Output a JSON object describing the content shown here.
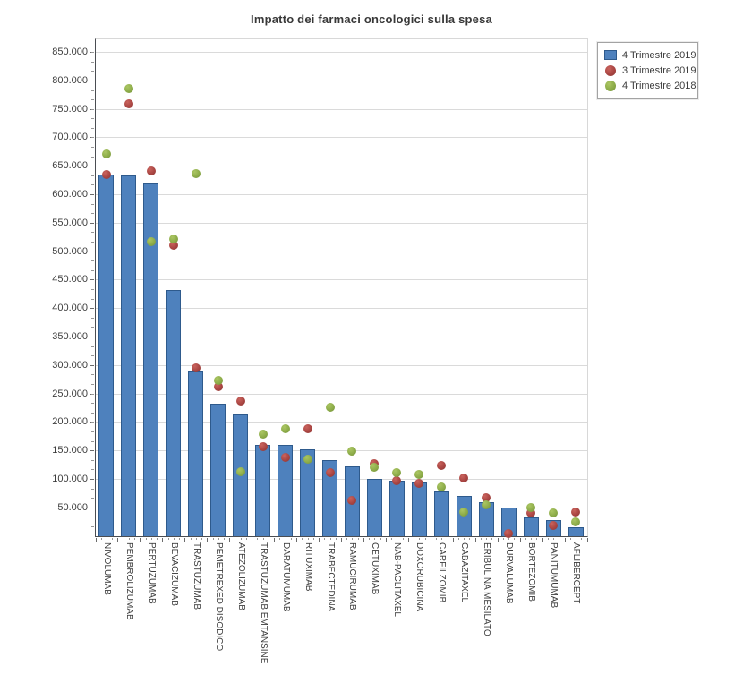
{
  "title": "Impatto dei farmaci oncologici sulla spesa",
  "chart_data": {
    "type": "bar",
    "title": "Impatto dei farmaci oncologici sulla spesa",
    "xlabel": "",
    "ylabel": "",
    "ylim": [
      0,
      873000
    ],
    "y_tick_interval": 50000,
    "y_tick_labels": [
      "50.000",
      "100.000",
      "150.000",
      "200.000",
      "250.000",
      "300.000",
      "350.000",
      "400.000",
      "450.000",
      "500.000",
      "550.000",
      "600.000",
      "650.000",
      "700.000",
      "750.000",
      "800.000",
      "850.000"
    ],
    "grid": true,
    "legend_position": "top-right",
    "number_format": "thousands-dot",
    "categories": [
      "NIVOLUMAB",
      "PEMBROLIZUMAB",
      "PERTUZUMAB",
      "BEVACIZUMAB",
      "TRASTUZUMAB",
      "PEMETREXED DISODICO",
      "ATEZOLIZUMAB",
      "TRASTUZUMAB EMTANSINE",
      "DARATUMUMAB",
      "RITUXIMAB",
      "TRABECTEDINA",
      "RAMUCIRUMAB",
      "CETUXIMAB",
      "NAB-PACLITAXEL",
      "DOXORUBICINA",
      "CARFILZOMIB",
      "CABAZITAXEL",
      "ERIBULINA MESILATO",
      "DURVALUMAB",
      "BORTEZOMIB",
      "PANITUMUMAB",
      "AFLIBERCEPT"
    ],
    "series": [
      {
        "name": "4 Trimestre 2019",
        "type": "bar",
        "color": "#4e81bd",
        "border_color": "#2e5a8c",
        "values": [
          636000,
          634000,
          622000,
          432000,
          289000,
          233000,
          214000,
          161000,
          161000,
          153000,
          133000,
          122000,
          100000,
          98000,
          95000,
          79000,
          70000,
          59000,
          50000,
          33000,
          29000,
          16000
        ]
      },
      {
        "name": "3 Trimestre 2019",
        "type": "scatter",
        "color": "#a94542",
        "color_light": "#c9635d",
        "color_dark": "#8a3734",
        "values": [
          635000,
          759000,
          641000,
          511000,
          296000,
          263000,
          238000,
          158000,
          138000,
          188000,
          112000,
          63000,
          127000,
          97000,
          93000,
          125000,
          102000,
          68000,
          5000,
          41000,
          19000,
          42000
        ]
      },
      {
        "name": "4 Trimestre 2018",
        "type": "scatter",
        "color": "#8dac49",
        "color_light": "#abc663",
        "color_dark": "#72903a",
        "values": [
          672000,
          787000,
          517000,
          523000,
          637000,
          274000,
          114000,
          180000,
          188000,
          135000,
          226000,
          149000,
          121000,
          112000,
          108000,
          86000,
          42000,
          55000,
          null,
          51000,
          41000,
          25000
        ]
      }
    ]
  },
  "colors": {
    "grid": "#dadada",
    "axis": "#4a4d52",
    "tick": "#6b6b6b",
    "text": "#3c3c3c",
    "title": "#383838",
    "plot_border": "#d8d8d8",
    "legend_border": "#a3a3a3",
    "background": "#ffffff"
  }
}
